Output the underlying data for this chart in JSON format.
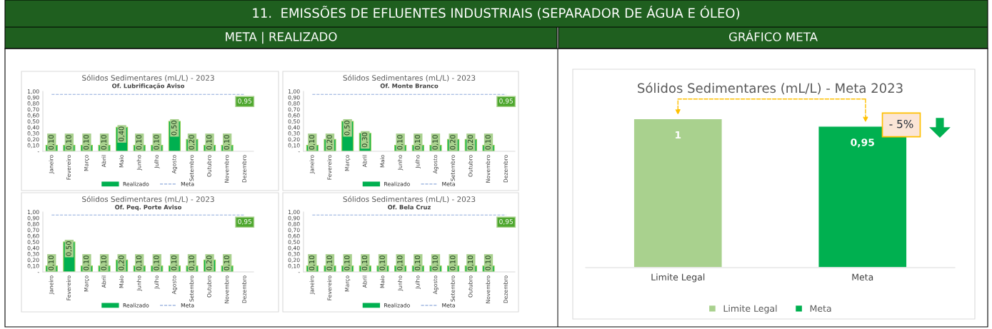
{
  "chart_data": [
    {
      "type": "other",
      "title": "11.  EMISSÕES DE EFLUENTES INDUSTRIAIS (SEPARADOR DE ÁGUA E ÓLEO)",
      "annotations": [
        "META | REALIZADO",
        "GRÁFICO META"
      ]
    },
    {
      "type": "bar",
      "title": "Sólidos Sedimentares (mL/L) - 2023",
      "subtitle": "Of. Lubrificação Aviso",
      "categories": [
        "Janeiro",
        "Fevereiro",
        "Março",
        "Abril",
        "Maio",
        "Junho",
        "Julho",
        "Agosto",
        "Setembro",
        "Outubro",
        "Novembro",
        "Dezembro"
      ],
      "ylim": [
        0,
        1.0
      ],
      "yticks": [
        {
          "value": 0,
          "label": "-"
        },
        {
          "value": 0.1,
          "label": "0,10"
        },
        {
          "value": 0.2,
          "label": "0,20"
        },
        {
          "value": 0.3,
          "label": "0,30"
        },
        {
          "value": 0.4,
          "label": "0,40"
        },
        {
          "value": 0.5,
          "label": "0,50"
        },
        {
          "value": 0.6,
          "label": "0,60"
        },
        {
          "value": 0.7,
          "label": "0,70"
        },
        {
          "value": 0.8,
          "label": "0,80"
        },
        {
          "value": 0.9,
          "label": "0,90"
        },
        {
          "value": 1.0,
          "label": "1,00"
        }
      ],
      "legend": "bottom",
      "grid": false,
      "series": [
        {
          "name": "Realizado",
          "type": "bar",
          "color": "#00b050",
          "values": [
            0.1,
            0.1,
            0.1,
            0.1,
            0.4,
            0.1,
            0.1,
            0.5,
            0.2,
            0.1,
            0.1,
            null
          ],
          "value_labels": [
            "0,10",
            "0,10",
            "0,10",
            "0,10",
            "0,40",
            "0,10",
            "0,10",
            "0,50",
            "0,20",
            "0,10",
            "0,10",
            null
          ]
        },
        {
          "name": "Meta",
          "type": "line",
          "line_style": "dashed",
          "marker": "none",
          "color": "#8faadc",
          "values": [
            0.95,
            0.95,
            0.95,
            0.95,
            0.95,
            0.95,
            0.95,
            0.95,
            0.95,
            0.95,
            0.95,
            0.95
          ],
          "value_labels": [
            null,
            null,
            null,
            null,
            null,
            null,
            null,
            null,
            null,
            null,
            null,
            "0,95"
          ]
        }
      ]
    },
    {
      "type": "bar",
      "title": "Sólidos Sedimentares (mL/L) - 2023",
      "subtitle": "Of. Monte Branco",
      "categories": [
        "Janeiro",
        "Fevereiro",
        "Março",
        "Abril",
        "Maio",
        "Junho",
        "Julho",
        "Agosto",
        "Setembro",
        "Outubro",
        "Novembro",
        "Dezembro"
      ],
      "ylim": [
        0,
        1.0
      ],
      "yticks": [
        {
          "value": 0,
          "label": "-"
        },
        {
          "value": 0.1,
          "label": "0,10"
        },
        {
          "value": 0.2,
          "label": "0,20"
        },
        {
          "value": 0.3,
          "label": "0,30"
        },
        {
          "value": 0.4,
          "label": "0,40"
        },
        {
          "value": 0.5,
          "label": "0,50"
        },
        {
          "value": 0.6,
          "label": "0,60"
        },
        {
          "value": 0.7,
          "label": "0,70"
        },
        {
          "value": 0.8,
          "label": "0,80"
        },
        {
          "value": 0.9,
          "label": "0,90"
        },
        {
          "value": 1.0,
          "label": "1,00"
        }
      ],
      "legend": "bottom",
      "grid": false,
      "series": [
        {
          "name": "Realizado",
          "type": "bar",
          "color": "#00b050",
          "values": [
            0.1,
            0.2,
            0.5,
            0.3,
            null,
            0.1,
            0.1,
            0.1,
            0.2,
            0.2,
            0.1,
            null
          ],
          "value_labels": [
            "0,10",
            "0,20",
            "0,50",
            "0,30",
            null,
            "0,10",
            "0,10",
            "0,10",
            "0,20",
            "0,20",
            "0,10",
            null
          ]
        },
        {
          "name": "Meta",
          "type": "line",
          "line_style": "dashed",
          "marker": "none",
          "color": "#8faadc",
          "values": [
            0.95,
            0.95,
            0.95,
            0.95,
            0.95,
            0.95,
            0.95,
            0.95,
            0.95,
            0.95,
            0.95,
            0.95
          ],
          "value_labels": [
            null,
            null,
            null,
            null,
            null,
            null,
            null,
            null,
            null,
            null,
            null,
            "0,95"
          ]
        }
      ]
    },
    {
      "type": "bar",
      "title": "Sólidos Sedimentares (mL/L) - 2023",
      "subtitle": "Of. Peq. Porte Aviso",
      "categories": [
        "Janeiro",
        "Fevereiro",
        "Março",
        "Abril",
        "Maio",
        "Junho",
        "Julho",
        "Agosto",
        "Setembro",
        "Outubro",
        "Novembro",
        "Dezembro"
      ],
      "ylim": [
        0,
        1.0
      ],
      "yticks": [
        {
          "value": 0,
          "label": "-"
        },
        {
          "value": 0.1,
          "label": "0,10"
        },
        {
          "value": 0.2,
          "label": "0,20"
        },
        {
          "value": 0.3,
          "label": "0,30"
        },
        {
          "value": 0.4,
          "label": "0,40"
        },
        {
          "value": 0.5,
          "label": "0,50"
        },
        {
          "value": 0.6,
          "label": "0,60"
        },
        {
          "value": 0.7,
          "label": "0,70"
        },
        {
          "value": 0.8,
          "label": "0,80"
        },
        {
          "value": 0.9,
          "label": "0,90"
        },
        {
          "value": 1.0,
          "label": "1,00"
        }
      ],
      "legend": "bottom",
      "grid": false,
      "series": [
        {
          "name": "Realizado",
          "type": "bar",
          "color": "#00b050",
          "values": [
            0.1,
            0.5,
            0.1,
            0.1,
            0.2,
            0.1,
            0.1,
            0.1,
            0.1,
            0.2,
            0.1,
            null
          ],
          "value_labels": [
            "0,10",
            "0,50",
            "0,10",
            "0,10",
            "0,20",
            "0,10",
            "0,10",
            "0,10",
            "0,10",
            "0,20",
            "0,10",
            null
          ]
        },
        {
          "name": "Meta",
          "type": "line",
          "line_style": "dashed",
          "marker": "none",
          "color": "#8faadc",
          "values": [
            0.95,
            0.95,
            0.95,
            0.95,
            0.95,
            0.95,
            0.95,
            0.95,
            0.95,
            0.95,
            0.95,
            0.95
          ],
          "value_labels": [
            null,
            null,
            null,
            null,
            null,
            null,
            null,
            null,
            null,
            null,
            null,
            "0,95"
          ]
        }
      ]
    },
    {
      "type": "bar",
      "title": "Sólidos Sedimentares (mL/L) - 2023",
      "subtitle": "Of. Bela Cruz",
      "categories": [
        "Janeiro",
        "Fevereiro",
        "Março",
        "Abril",
        "Maio",
        "Junho",
        "Julho",
        "Agosto",
        "Setembro",
        "Outubro",
        "Novembro",
        "Dezembro"
      ],
      "ylim": [
        0,
        1.0
      ],
      "yticks": [
        {
          "value": 0,
          "label": "-"
        },
        {
          "value": 0.1,
          "label": "0,10"
        },
        {
          "value": 0.2,
          "label": "0,20"
        },
        {
          "value": 0.3,
          "label": "0,30"
        },
        {
          "value": 0.4,
          "label": "0,40"
        },
        {
          "value": 0.5,
          "label": "0,50"
        },
        {
          "value": 0.6,
          "label": "0,60"
        },
        {
          "value": 0.7,
          "label": "0,70"
        },
        {
          "value": 0.8,
          "label": "0,80"
        },
        {
          "value": 0.9,
          "label": "0,90"
        },
        {
          "value": 1.0,
          "label": "1,00"
        }
      ],
      "legend": "bottom",
      "grid": false,
      "series": [
        {
          "name": "Realizado",
          "type": "bar",
          "color": "#00b050",
          "values": [
            0.1,
            0.1,
            0.1,
            0.1,
            0.1,
            0.1,
            0.1,
            0.1,
            0.1,
            0.1,
            0.1,
            null
          ],
          "value_labels": [
            "0,10",
            "0,10",
            "0,10",
            "0,10",
            "0,10",
            "0,10",
            "0,10",
            "0,10",
            "0,10",
            "0,10",
            "0,10",
            null
          ]
        },
        {
          "name": "Meta",
          "type": "line",
          "line_style": "dashed",
          "marker": "none",
          "color": "#8faadc",
          "values": [
            0.95,
            0.95,
            0.95,
            0.95,
            0.95,
            0.95,
            0.95,
            0.95,
            0.95,
            0.95,
            0.95,
            0.95
          ],
          "value_labels": [
            null,
            null,
            null,
            null,
            null,
            null,
            null,
            null,
            null,
            null,
            null,
            "0,95"
          ]
        }
      ]
    },
    {
      "type": "bar",
      "title": "Sólidos Sedimentares (mL/L) - Meta 2023",
      "categories": [
        "Limite Legal",
        "Meta"
      ],
      "tick_labels": "x",
      "grid": false,
      "legend": "bottom",
      "annotations": [
        "- 5%"
      ],
      "series": [
        {
          "name": "Limite Legal",
          "color": "#a9d18e",
          "values": [
            1,
            null
          ],
          "value_labels": [
            "1",
            null
          ]
        },
        {
          "name": "Meta",
          "color": "#00b050",
          "values": [
            null,
            0.95
          ],
          "value_labels": [
            null,
            "0,95"
          ]
        }
      ]
    }
  ]
}
